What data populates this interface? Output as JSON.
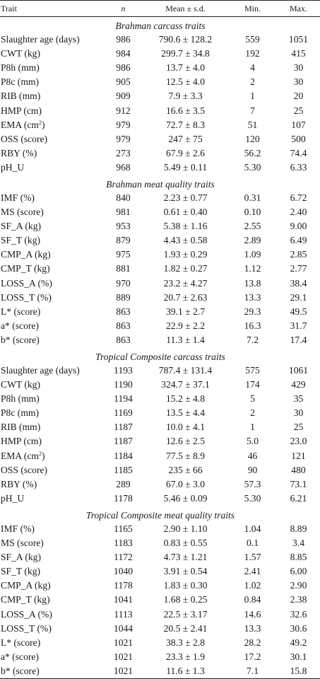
{
  "header": {
    "trait": "Trait",
    "n": "n",
    "mean": "Mean ± s.d.",
    "min": "Min.",
    "max": "Max."
  },
  "sections": [
    {
      "title": "Brahman carcass traits",
      "rows": [
        {
          "trait": "Slaughter age (days)",
          "n": "986",
          "mean": "790.6 ± 128.2",
          "min": "559",
          "max": "1051"
        },
        {
          "trait": "CWT (kg)",
          "n": "984",
          "mean": "299.7 ± 34.8",
          "min": "192",
          "max": "415"
        },
        {
          "trait": "P8h (mm)",
          "n": "986",
          "mean": "13.7 ± 4.0",
          "min": "4",
          "max": "30"
        },
        {
          "trait": "P8c (mm)",
          "n": "905",
          "mean": "12.5 ± 4.0",
          "min": "2",
          "max": "30"
        },
        {
          "trait": "RIB (mm)",
          "n": "909",
          "mean": "7.9 ± 3.3",
          "min": "1",
          "max": "20"
        },
        {
          "trait": "HMP (cm)",
          "n": "912",
          "mean": "16.6 ± 3.5",
          "min": "7",
          "max": "25"
        },
        {
          "trait": "EMA (cm",
          "sup": "2",
          "trait_end": ")",
          "n": "979",
          "mean": "72.7 ± 8.3",
          "min": "51",
          "max": "107"
        },
        {
          "trait": "OSS (score)",
          "n": "979",
          "mean": "247 ± 75",
          "min": "120",
          "max": "500"
        },
        {
          "trait": "RBY (%)",
          "n": "273",
          "mean": "67.9 ± 2.6",
          "min": "56.2",
          "max": "74.4"
        },
        {
          "trait": "pH_U",
          "n": "968",
          "mean": "5.49 ± 0.11",
          "min": "5.30",
          "max": "6.33"
        }
      ]
    },
    {
      "title": "Brahman meat quality traits",
      "rows": [
        {
          "trait": "IMF (%)",
          "n": "840",
          "mean": "2.23 ± 0.77",
          "min": "0.31",
          "max": "6.72"
        },
        {
          "trait": "MS (score)",
          "n": "981",
          "mean": "0.61 ± 0.40",
          "min": "0.10",
          "max": "2.40"
        },
        {
          "trait": "SF_A (kg)",
          "n": "953",
          "mean": "5.38 ± 1.16",
          "min": "2.55",
          "max": "9.00"
        },
        {
          "trait": "SF_T (kg)",
          "n": "879",
          "mean": "4.43 ± 0.58",
          "min": "2.89",
          "max": "6.49"
        },
        {
          "trait": "CMP_A (kg)",
          "n": "975",
          "mean": "1.93 ± 0.29",
          "min": "1.09",
          "max": "2.85"
        },
        {
          "trait": "CMP_T (kg)",
          "n": "881",
          "mean": "1.82 ± 0.27",
          "min": "1.12",
          "max": "2.77"
        },
        {
          "trait": "LOSS_A (%)",
          "n": "970",
          "mean": "23.2 ± 4.27",
          "min": "13.8",
          "max": "38.4"
        },
        {
          "trait": "LOSS_T (%)",
          "n": "889",
          "mean": "20.7 ± 2.63",
          "min": "13.3",
          "max": "29.1"
        },
        {
          "trait": "L* (score)",
          "n": "863",
          "mean": "39.1 ± 2.7",
          "min": "29.3",
          "max": "49.5"
        },
        {
          "trait": "a* (score)",
          "n": "863",
          "mean": "22.9 ± 2.2",
          "min": "16.3",
          "max": "31.7"
        },
        {
          "trait": "b* (score)",
          "n": "863",
          "mean": "11.3 ± 1.4",
          "min": "7.2",
          "max": "17.4"
        }
      ]
    },
    {
      "title": "Tropical Composite carcass traits",
      "rows": [
        {
          "trait": "Slaughter age (days)",
          "n": "1193",
          "mean": "787.4 ± 131.4",
          "min": "575",
          "max": "1061"
        },
        {
          "trait": "CWT (kg)",
          "n": "1190",
          "mean": "324.7 ± 37.1",
          "min": "174",
          "max": "429"
        },
        {
          "trait": "P8h (mm)",
          "n": "1194",
          "mean": "15.2 ± 4.8",
          "min": "5",
          "max": "35"
        },
        {
          "trait": "P8c (mm)",
          "n": "1169",
          "mean": "13.5 ± 4.4",
          "min": "2",
          "max": "30"
        },
        {
          "trait": "RIB (mm)",
          "n": "1187",
          "mean": "10.0 ± 4.1",
          "min": "1",
          "max": "25"
        },
        {
          "trait": "HMP (cm)",
          "n": "1187",
          "mean": "12.6 ± 2.5",
          "min": "5.0",
          "max": "23.0"
        },
        {
          "trait": "EMA (cm",
          "sup": "2",
          "trait_end": ")",
          "n": "1184",
          "mean": "77.5 ± 8.9",
          "min": "46",
          "max": "121"
        },
        {
          "trait": "OSS (score)",
          "n": "1185",
          "mean": "235 ± 66",
          "min": "90",
          "max": "480"
        },
        {
          "trait": "RBY (%)",
          "n": "289",
          "mean": "67.0 ± 3.0",
          "min": "57.3",
          "max": "73.1"
        },
        {
          "trait": "pH_U",
          "n": "1178",
          "mean": "5.46 ± 0.09",
          "min": "5.30",
          "max": "6.21"
        }
      ]
    },
    {
      "title": "Tropical Composite meat quality traits",
      "rows": [
        {
          "trait": "IMF (%)",
          "n": "1165",
          "mean": "2.90 ± 1.10",
          "min": "1.04",
          "max": "8.89"
        },
        {
          "trait": "MS (score)",
          "n": "1183",
          "mean": "0.83 ± 0.55",
          "min": "0.1",
          "max": "3.4"
        },
        {
          "trait": "SF_A (kg)",
          "n": "1172",
          "mean": "4.73 ± 1.21",
          "min": "1.57",
          "max": "8.85"
        },
        {
          "trait": "SF_T (kg)",
          "n": "1040",
          "mean": "3.91 ± 0.54",
          "min": "2.41",
          "max": "6.00"
        },
        {
          "trait": "CMP_A (kg)",
          "n": "1178",
          "mean": "1.83 ± 0.30",
          "min": "1.02",
          "max": "2.90"
        },
        {
          "trait": "CMP_T (kg)",
          "n": "1041",
          "mean": "1.68 ± 0.25",
          "min": "0.84",
          "max": "2.38"
        },
        {
          "trait": "LOSS_A (%)",
          "n": "1113",
          "mean": "22.5 ± 3.17",
          "min": "14.6",
          "max": "32.6"
        },
        {
          "trait": "LOSS_T (%)",
          "n": "1044",
          "mean": "20.5 ± 2.41",
          "min": "13.3",
          "max": "30.6"
        },
        {
          "trait": "L* (score)",
          "n": "1021",
          "mean": "38.3 ± 2.8",
          "min": "28.2",
          "max": "49.2"
        },
        {
          "trait": "a* (score)",
          "n": "1021",
          "mean": "23.3 ± 1.9",
          "min": "17.2",
          "max": "30.1"
        },
        {
          "trait": "b* (score)",
          "n": "1021",
          "mean": "11.6 ± 1.3",
          "min": "7.1",
          "max": "15.8"
        }
      ]
    }
  ]
}
